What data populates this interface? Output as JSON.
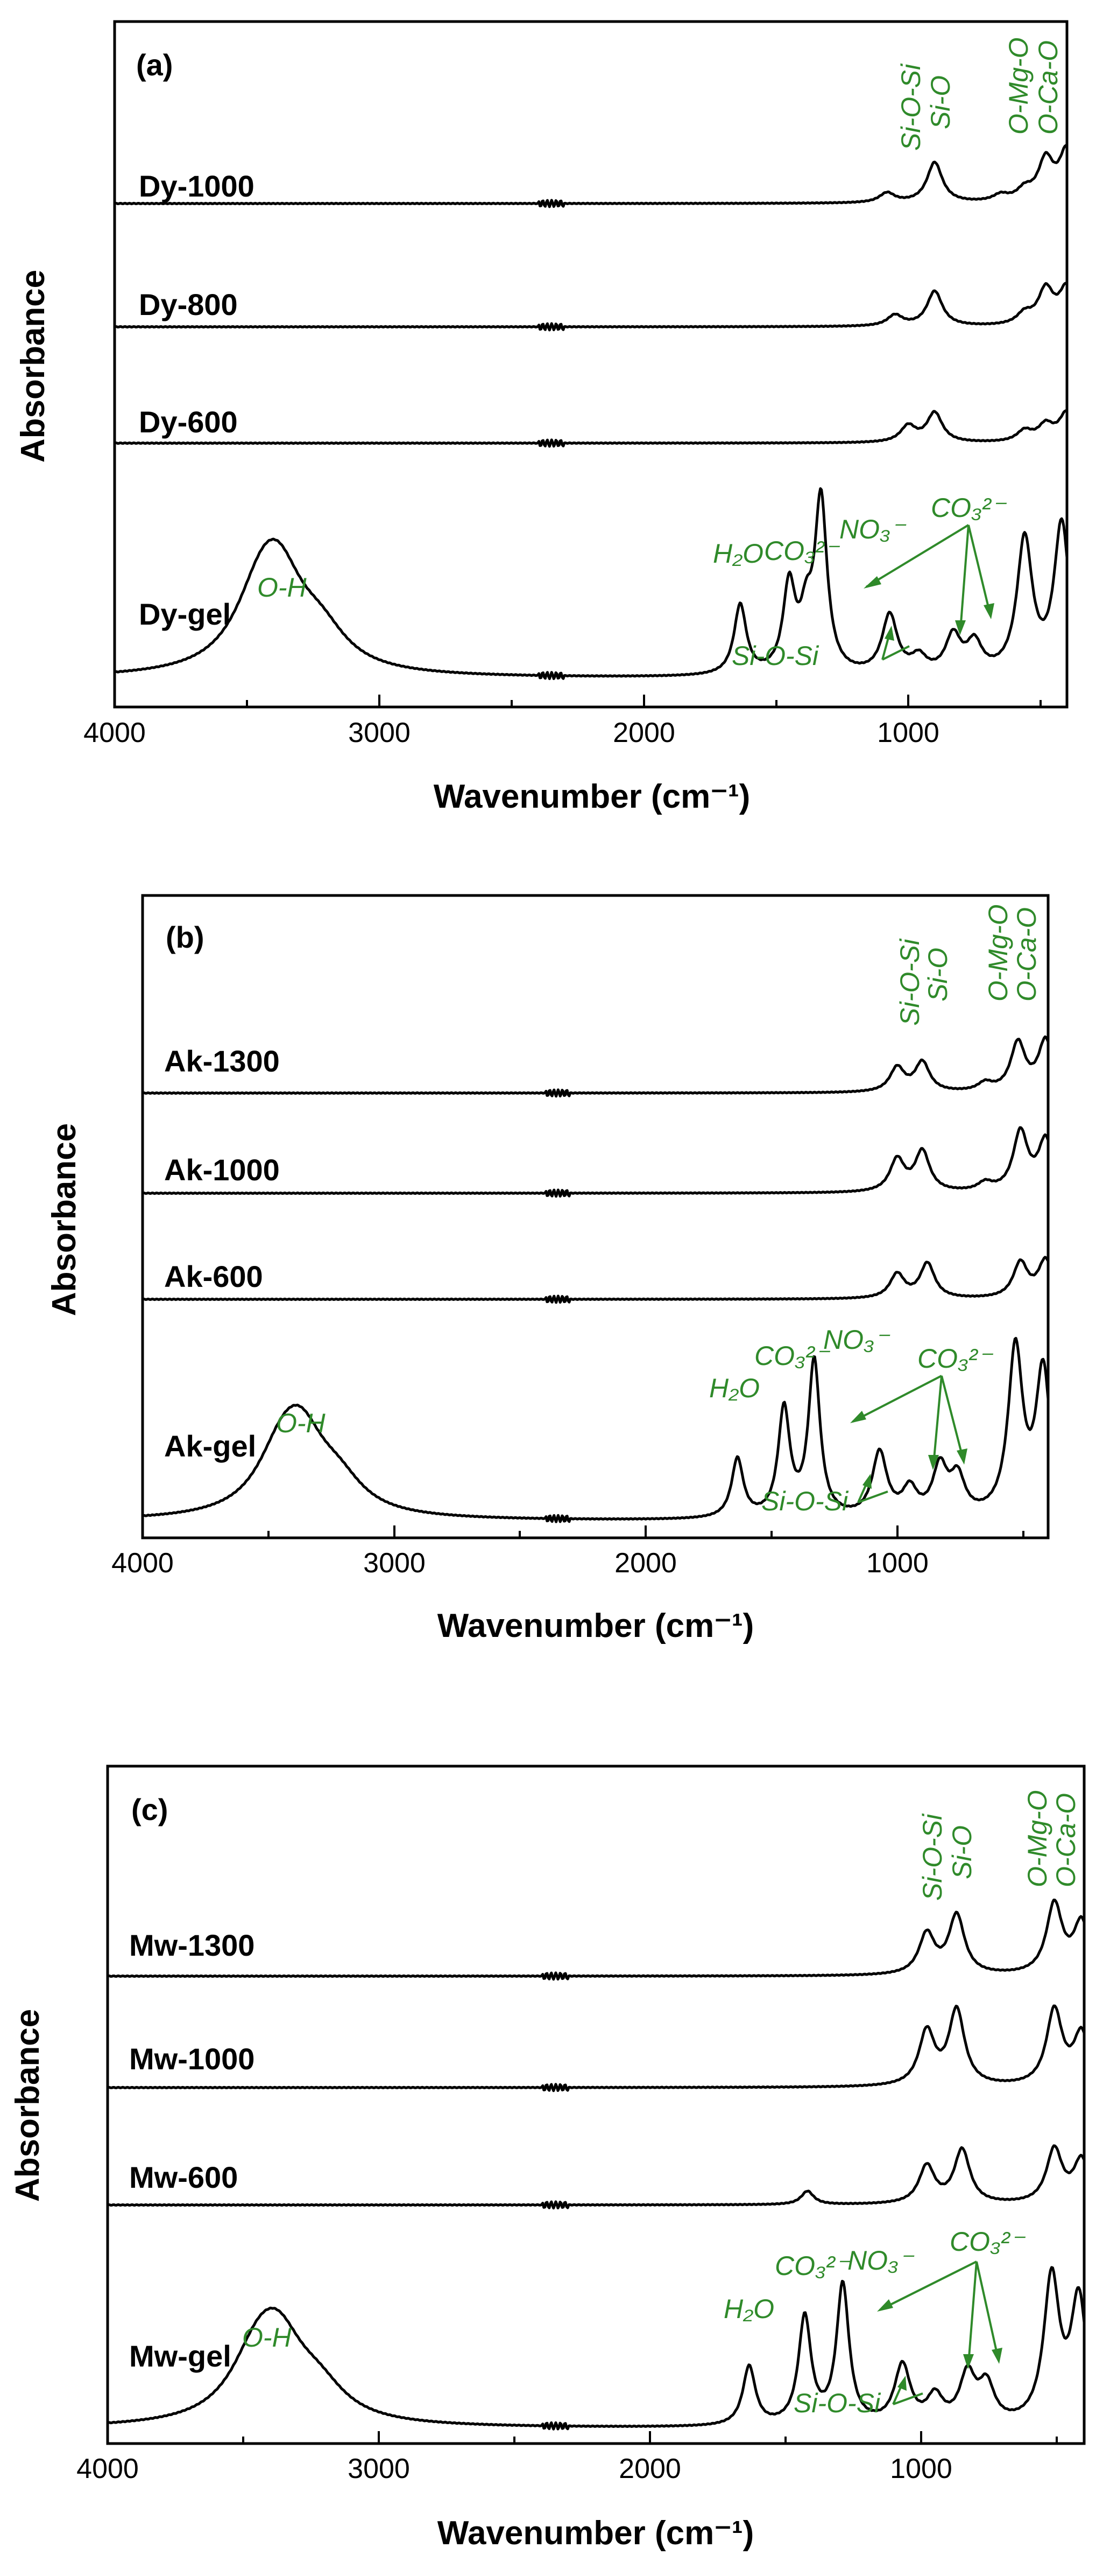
{
  "chart_data": [
    {
      "type": "line",
      "panel_label": "(a)",
      "xlabel": "Wavenumber (cm⁻¹)",
      "ylabel": "Absorbance",
      "xlim": [
        4000,
        400
      ],
      "x_ticks": [
        "4000",
        "3000",
        "2000",
        "1000"
      ],
      "series": [
        {
          "name": "Dy-1000",
          "peaks": [
            [
              1080,
              18
            ],
            [
              900,
              75
            ],
            [
              650,
              12
            ],
            [
              560,
              20
            ],
            [
              480,
              75
            ],
            [
              400,
              95
            ]
          ]
        },
        {
          "name": "Dy-800",
          "peaks": [
            [
              1050,
              20
            ],
            [
              900,
              65
            ],
            [
              560,
              20
            ],
            [
              480,
              65
            ],
            [
              400,
              70
            ]
          ]
        },
        {
          "name": "Dy-600",
          "peaks": [
            [
              1000,
              30
            ],
            [
              900,
              55
            ],
            [
              560,
              20
            ],
            [
              480,
              30
            ],
            [
              400,
              55
            ]
          ]
        },
        {
          "name": "Dy-gel",
          "peaks": [
            [
              3450,
              110
            ],
            [
              3380,
              150
            ],
            [
              3220,
              60
            ],
            [
              1635,
              130
            ],
            [
              1450,
              160
            ],
            [
              1385,
              90
            ],
            [
              1330,
              320
            ],
            [
              1070,
              110
            ],
            [
              960,
              30
            ],
            [
              830,
              70
            ],
            [
              750,
              55
            ],
            [
              560,
              250
            ],
            [
              420,
              280
            ]
          ]
        }
      ],
      "annotations": [
        "Si-O-Si",
        "Si-O",
        "O-Mg-O",
        "O-Ca-O",
        "O-H",
        "H₂O",
        "CO₃²⁻",
        "NO₃⁻",
        "CO₃²⁻",
        "Si-O-Si"
      ]
    },
    {
      "type": "line",
      "panel_label": "(b)",
      "xlabel": "Wavenumber (cm⁻¹)",
      "ylabel": "Absorbance",
      "xlim": [
        4000,
        400
      ],
      "x_ticks": [
        "4000",
        "3000",
        "2000",
        "1000"
      ],
      "series": [
        {
          "name": "Ak-1300",
          "peaks": [
            [
              1000,
              45
            ],
            [
              900,
              55
            ],
            [
              650,
              15
            ],
            [
              520,
              90
            ],
            [
              410,
              95
            ]
          ]
        },
        {
          "name": "Ak-1000",
          "peaks": [
            [
              1000,
              60
            ],
            [
              900,
              75
            ],
            [
              650,
              15
            ],
            [
              510,
              110
            ],
            [
              410,
              95
            ]
          ]
        },
        {
          "name": "Ak-600",
          "peaks": [
            [
              1000,
              45
            ],
            [
              880,
              65
            ],
            [
              510,
              65
            ],
            [
              410,
              70
            ]
          ]
        },
        {
          "name": "Ak-gel",
          "peaks": [
            [
              3450,
              90
            ],
            [
              3370,
              130
            ],
            [
              3220,
              50
            ],
            [
              1635,
              110
            ],
            [
              1450,
              200
            ],
            [
              1330,
              290
            ],
            [
              1070,
              120
            ],
            [
              950,
              50
            ],
            [
              830,
              90
            ],
            [
              760,
              70
            ],
            [
              530,
              310
            ],
            [
              420,
              270
            ]
          ]
        }
      ],
      "annotations": [
        "Si-O-Si",
        "Si-O",
        "O-Mg-O",
        "O-Ca-O",
        "O-H",
        "H₂O",
        "CO₃²⁻",
        "NO₃⁻",
        "CO₃²⁻",
        "Si-O-Si"
      ]
    },
    {
      "type": "line",
      "panel_label": "(c)",
      "xlabel": "Wavenumber (cm⁻¹)",
      "ylabel": "Absorbance",
      "xlim": [
        4000,
        400
      ],
      "x_ticks": [
        "4000",
        "3000",
        "2000",
        "1000"
      ],
      "series": [
        {
          "name": "Mw-1300",
          "peaks": [
            [
              980,
              75
            ],
            [
              870,
              110
            ],
            [
              510,
              130
            ],
            [
              410,
              95
            ]
          ]
        },
        {
          "name": "Mw-1000",
          "peaks": [
            [
              980,
              100
            ],
            [
              870,
              140
            ],
            [
              510,
              140
            ],
            [
              410,
              95
            ]
          ]
        },
        {
          "name": "Mw-600",
          "peaks": [
            [
              1420,
              25
            ],
            [
              980,
              70
            ],
            [
              850,
              100
            ],
            [
              510,
              100
            ],
            [
              410,
              80
            ]
          ]
        },
        {
          "name": "Mw-gel",
          "peaks": [
            [
              3450,
              100
            ],
            [
              3370,
              130
            ],
            [
              3220,
              50
            ],
            [
              1635,
              110
            ],
            [
              1430,
              200
            ],
            [
              1290,
              260
            ],
            [
              1070,
              110
            ],
            [
              950,
              50
            ],
            [
              830,
              90
            ],
            [
              760,
              70
            ],
            [
              520,
              270
            ],
            [
              420,
              230
            ]
          ]
        }
      ],
      "annotations": [
        "Si-O-Si",
        "Si-O",
        "O-Mg-O",
        "O-Ca-O",
        "O-H",
        "H₂O",
        "CO₃²⁻",
        "NO₃⁻",
        "CO₃²⁻",
        "Si-O-Si"
      ]
    }
  ]
}
